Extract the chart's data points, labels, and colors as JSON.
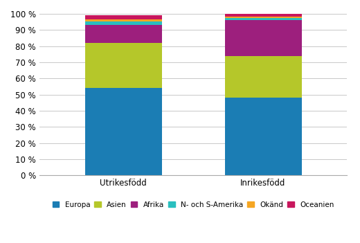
{
  "categories": [
    "Utrikesfödd",
    "Inrikesfödd"
  ],
  "series": [
    {
      "label": "Europa",
      "values": [
        54.0,
        48.0
      ],
      "color": "#1b7db4"
    },
    {
      "label": "Asien",
      "values": [
        28.0,
        26.0
      ],
      "color": "#b5c72a"
    },
    {
      "label": "Afrika",
      "values": [
        11.0,
        22.0
      ],
      "color": "#9d1f7d"
    },
    {
      "label": "N- och S-Amerika",
      "values": [
        2.5,
        1.5
      ],
      "color": "#2abfbf"
    },
    {
      "label": "Okänd",
      "values": [
        1.0,
        1.0
      ],
      "color": "#f5a623"
    },
    {
      "label": "Oceanien",
      "values": [
        2.5,
        1.5
      ],
      "color": "#c8175d"
    }
  ],
  "ylim": [
    0,
    100
  ],
  "yticks": [
    0,
    10,
    20,
    30,
    40,
    50,
    60,
    70,
    80,
    90,
    100
  ],
  "background_color": "#ffffff",
  "grid_color": "#c8c8c8",
  "bar_width": 0.55,
  "figsize": [
    5.2,
    3.51
  ],
  "dpi": 100,
  "tick_fontsize": 8.5,
  "legend_fontsize": 7.5
}
